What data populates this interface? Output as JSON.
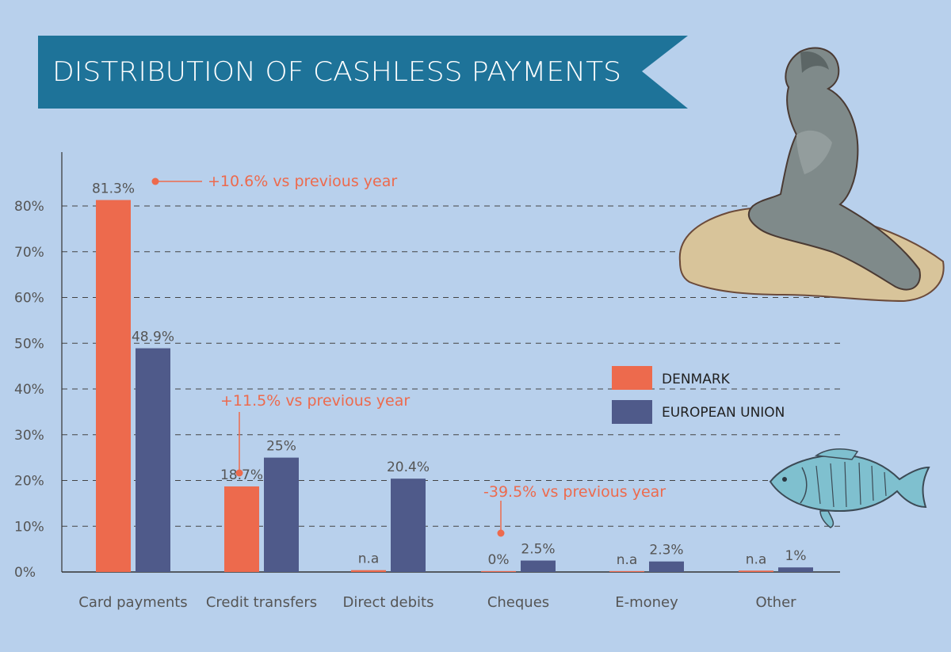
{
  "chart_data": {
    "type": "bar",
    "title": "DISTRIBUTION OF CASHLESS PAYMENTS",
    "categories": [
      "Card payments",
      "Credit transfers",
      "Direct debits",
      "Cheques",
      "E-money",
      "Other"
    ],
    "series": [
      {
        "name": "DENMARK",
        "color": "#ed6a4d",
        "values": [
          81.3,
          18.7,
          0.4,
          0.2,
          0.2,
          0.3
        ],
        "labels": [
          "81.3%",
          "18.7%",
          "n.a",
          "0%",
          "n.a",
          "n.a"
        ]
      },
      {
        "name": "EUROPEAN UNION",
        "color": "#4f5a8a",
        "values": [
          48.9,
          25,
          20.4,
          2.5,
          2.3,
          1
        ],
        "labels": [
          "48.9%",
          "25%",
          "20.4%",
          "2.5%",
          "2.3%",
          "1%"
        ]
      }
    ],
    "ylim": [
      0,
      80
    ],
    "yticks": [
      0,
      10,
      20,
      30,
      40,
      50,
      60,
      70,
      80
    ],
    "ytick_labels": [
      "0%",
      "10%",
      "20%",
      "30%",
      "40%",
      "50%",
      "60%",
      "70%",
      "80%"
    ],
    "grid": "dashed-horizontal",
    "legend_position": "right",
    "annotations": [
      {
        "text": "+10.6% vs previous year",
        "category": "Card payments",
        "series": "DENMARK"
      },
      {
        "text": "+11.5% vs previous year",
        "category": "Credit transfers",
        "series": "DENMARK"
      },
      {
        "text": "-39.5% vs previous year",
        "category": "Cheques",
        "series": "DENMARK"
      }
    ]
  },
  "colors": {
    "background": "#b8d0ec",
    "banner": "#1e7399",
    "annotation": "#ed6a4d",
    "axis_text": "#555555"
  },
  "illustrations": [
    "little-mermaid-statue",
    "fish"
  ]
}
